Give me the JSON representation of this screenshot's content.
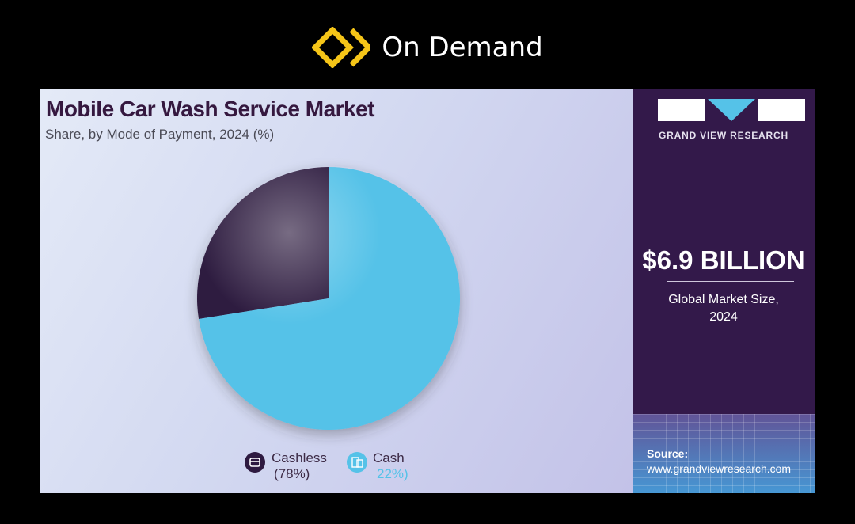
{
  "header": {
    "title": "On Demand",
    "logo_icon": "chevrons-diamond-icon",
    "logo_color": "#f5c518"
  },
  "sidebar": {
    "brand": "GRAND VIEW RESEARCH",
    "market_size": "$6.9 BILLION",
    "market_label_line1": "Global Market Size,",
    "market_label_line2": "2024",
    "source_label": "Source:",
    "source_url": "www.grandviewresearch.com"
  },
  "chart_data": {
    "type": "pie",
    "title": "Mobile Car Wash Service Market",
    "subtitle": "Share, by Mode of Payment, 2024 (%)",
    "categories": [
      "Cashless",
      "Cash"
    ],
    "values": [
      78,
      22
    ],
    "value_labels": [
      "(78%)",
      "22%)"
    ],
    "colors": [
      "#2e1a40",
      "#55c2e8"
    ],
    "legend_position": "bottom"
  }
}
